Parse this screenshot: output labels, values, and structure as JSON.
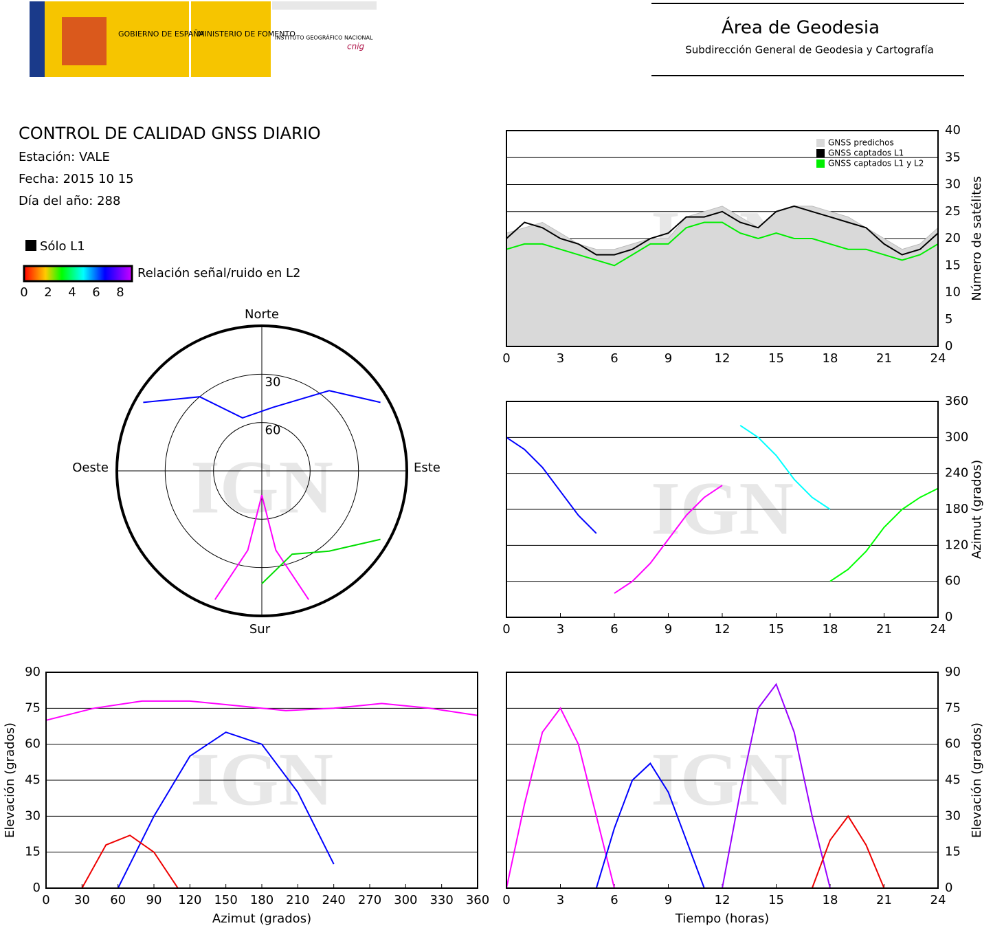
{
  "header": {
    "logo_gov": "GOBIERNO DE ESPAÑA",
    "logo_ministry": "MINISTERIO DE FOMENTO",
    "logo_ign": "INSTITUTO GEOGRÁFICO NACIONAL",
    "logo_cnig": "cnig",
    "title": "Área de Geodesia",
    "subtitle": "Subdirección General de Geodesia y Cartografía"
  },
  "info": {
    "title": "CONTROL DE CALIDAD GNSS DIARIO",
    "station": "Estación: VALE",
    "date": "Fecha: 2015 10 15",
    "doy": "Día del año: 288",
    "l1_only": "Sólo L1",
    "colorbar_label": "Relación señal/ruido en L2",
    "colorbar_ticks": [
      0,
      2,
      4,
      6,
      8
    ]
  },
  "chart_data": [
    {
      "type": "line",
      "watermark": "IGN",
      "grid": true,
      "legend": "top-right",
      "ylabel": "Número de satélites",
      "xlim": [
        0,
        24
      ],
      "xticks": [
        0,
        3,
        6,
        9,
        12,
        15,
        18,
        21,
        24
      ],
      "ylim": [
        0,
        40
      ],
      "yticks": [
        0,
        5,
        10,
        15,
        20,
        25,
        30,
        35,
        40
      ],
      "x": [
        0,
        1,
        2,
        3,
        4,
        5,
        6,
        7,
        8,
        9,
        10,
        11,
        12,
        13,
        14,
        15,
        16,
        17,
        18,
        19,
        20,
        21,
        22,
        23,
        24
      ],
      "series": [
        {
          "name": "GNSS predichos",
          "color": "#d9d9d9",
          "area": true,
          "values": [
            21,
            22,
            23,
            21,
            19,
            18,
            18,
            19,
            20,
            20,
            24,
            25,
            26,
            24,
            22,
            25,
            26,
            26,
            25,
            24,
            22,
            20,
            18,
            19,
            22
          ]
        },
        {
          "name": "GNSS captados L1",
          "color": "#000000",
          "values": [
            20,
            23,
            22,
            20,
            19,
            17,
            17,
            18,
            20,
            21,
            24,
            24,
            25,
            23,
            22,
            25,
            26,
            25,
            24,
            23,
            22,
            19,
            17,
            18,
            21
          ]
        },
        {
          "name": "GNSS captados L1 y L2",
          "color": "#00ee00",
          "values": [
            18,
            19,
            19,
            18,
            17,
            16,
            15,
            17,
            19,
            19,
            22,
            23,
            23,
            21,
            20,
            21,
            20,
            20,
            19,
            18,
            18,
            17,
            16,
            17,
            19
          ]
        }
      ]
    },
    {
      "type": "tracks",
      "watermark": "IGN",
      "grid": true,
      "ylabel": "Azimut (grados)",
      "xlim": [
        0,
        24
      ],
      "xticks": [
        0,
        3,
        6,
        9,
        12,
        15,
        18,
        21,
        24
      ],
      "ylim": [
        0,
        360
      ],
      "yticks": [
        0,
        60,
        120,
        180,
        240,
        300,
        360
      ],
      "tracks": [
        {
          "color": "#0000ff",
          "x": [
            0,
            1,
            2,
            3,
            4,
            5
          ],
          "values": [
            300,
            280,
            250,
            210,
            170,
            140
          ]
        },
        {
          "color": "#ff00ff",
          "x": [
            6,
            7,
            8,
            9,
            10,
            11,
            12
          ],
          "values": [
            40,
            60,
            90,
            130,
            170,
            200,
            220
          ]
        },
        {
          "color": "#00ffff",
          "x": [
            13,
            14,
            15,
            16,
            17,
            18
          ],
          "values": [
            320,
            300,
            270,
            230,
            200,
            180
          ]
        },
        {
          "color": "#00ff00",
          "x": [
            18,
            19,
            20,
            21,
            22,
            23,
            24
          ],
          "values": [
            60,
            80,
            110,
            150,
            180,
            200,
            215
          ]
        }
      ]
    },
    {
      "type": "tracks",
      "watermark": "IGN",
      "grid": true,
      "xlabel": "Azimut (grados)",
      "ylabel": "Elevación (grados)",
      "xlim": [
        0,
        360
      ],
      "xticks": [
        0,
        30,
        60,
        90,
        120,
        150,
        180,
        210,
        240,
        270,
        300,
        330,
        360
      ],
      "ylim": [
        0,
        90
      ],
      "yticks": [
        0,
        15,
        30,
        45,
        60,
        75,
        90
      ],
      "tracks": [
        {
          "color": "#0000ff",
          "x": [
            60,
            90,
            120,
            150,
            180,
            210,
            240
          ],
          "values": [
            0,
            30,
            55,
            65,
            60,
            40,
            10
          ]
        },
        {
          "color": "#ff00ff",
          "x": [
            0,
            40,
            80,
            120,
            160,
            200,
            240,
            280,
            320,
            360
          ],
          "values": [
            70,
            75,
            78,
            78,
            76,
            74,
            75,
            77,
            75,
            72
          ]
        },
        {
          "color": "#ee0000",
          "x": [
            30,
            50,
            70,
            90,
            110
          ],
          "values": [
            0,
            18,
            22,
            15,
            0
          ]
        }
      ]
    },
    {
      "type": "tracks",
      "watermark": "IGN",
      "grid": true,
      "xlabel": "Tiempo (horas)",
      "ylabel": "Elevación (grados)",
      "xlim": [
        0,
        24
      ],
      "xticks": [
        0,
        3,
        6,
        9,
        12,
        15,
        18,
        21,
        24
      ],
      "ylim": [
        0,
        90
      ],
      "yticks": [
        0,
        15,
        30,
        45,
        60,
        75,
        90
      ],
      "tracks": [
        {
          "color": "#ff00ff",
          "x": [
            0,
            1,
            2,
            3,
            4,
            5,
            6
          ],
          "values": [
            0,
            35,
            65,
            75,
            60,
            30,
            0
          ]
        },
        {
          "color": "#0000ff",
          "x": [
            5,
            6,
            7,
            8,
            9,
            10,
            11
          ],
          "values": [
            0,
            25,
            45,
            52,
            40,
            20,
            0
          ]
        },
        {
          "color": "#9900ff",
          "x": [
            12,
            13,
            14,
            15,
            16,
            17,
            18
          ],
          "values": [
            0,
            40,
            75,
            85,
            65,
            30,
            0
          ]
        },
        {
          "color": "#ee0000",
          "x": [
            17,
            18,
            19,
            20,
            21
          ],
          "values": [
            0,
            20,
            30,
            18,
            0
          ]
        }
      ]
    },
    {
      "type": "polar",
      "watermark": "IGN",
      "north": "Norte",
      "south": "Sur",
      "east": "Este",
      "west": "Oeste",
      "rlim": [
        90,
        0
      ],
      "rticks": [
        30,
        60
      ],
      "tracks": [
        {
          "color": "#ff00ff",
          "x": [
            200,
            190,
            180,
            170,
            160
          ],
          "values": [
            5,
            40,
            75,
            40,
            5
          ]
        },
        {
          "color": "#0000ff",
          "x": [
            300,
            320,
            340,
            10,
            40,
            60
          ],
          "values": [
            5,
            30,
            55,
            50,
            25,
            5
          ]
        },
        {
          "color": "#00dd00",
          "x": [
            120,
            140,
            160,
            180
          ],
          "values": [
            5,
            25,
            35,
            20
          ]
        }
      ]
    }
  ]
}
